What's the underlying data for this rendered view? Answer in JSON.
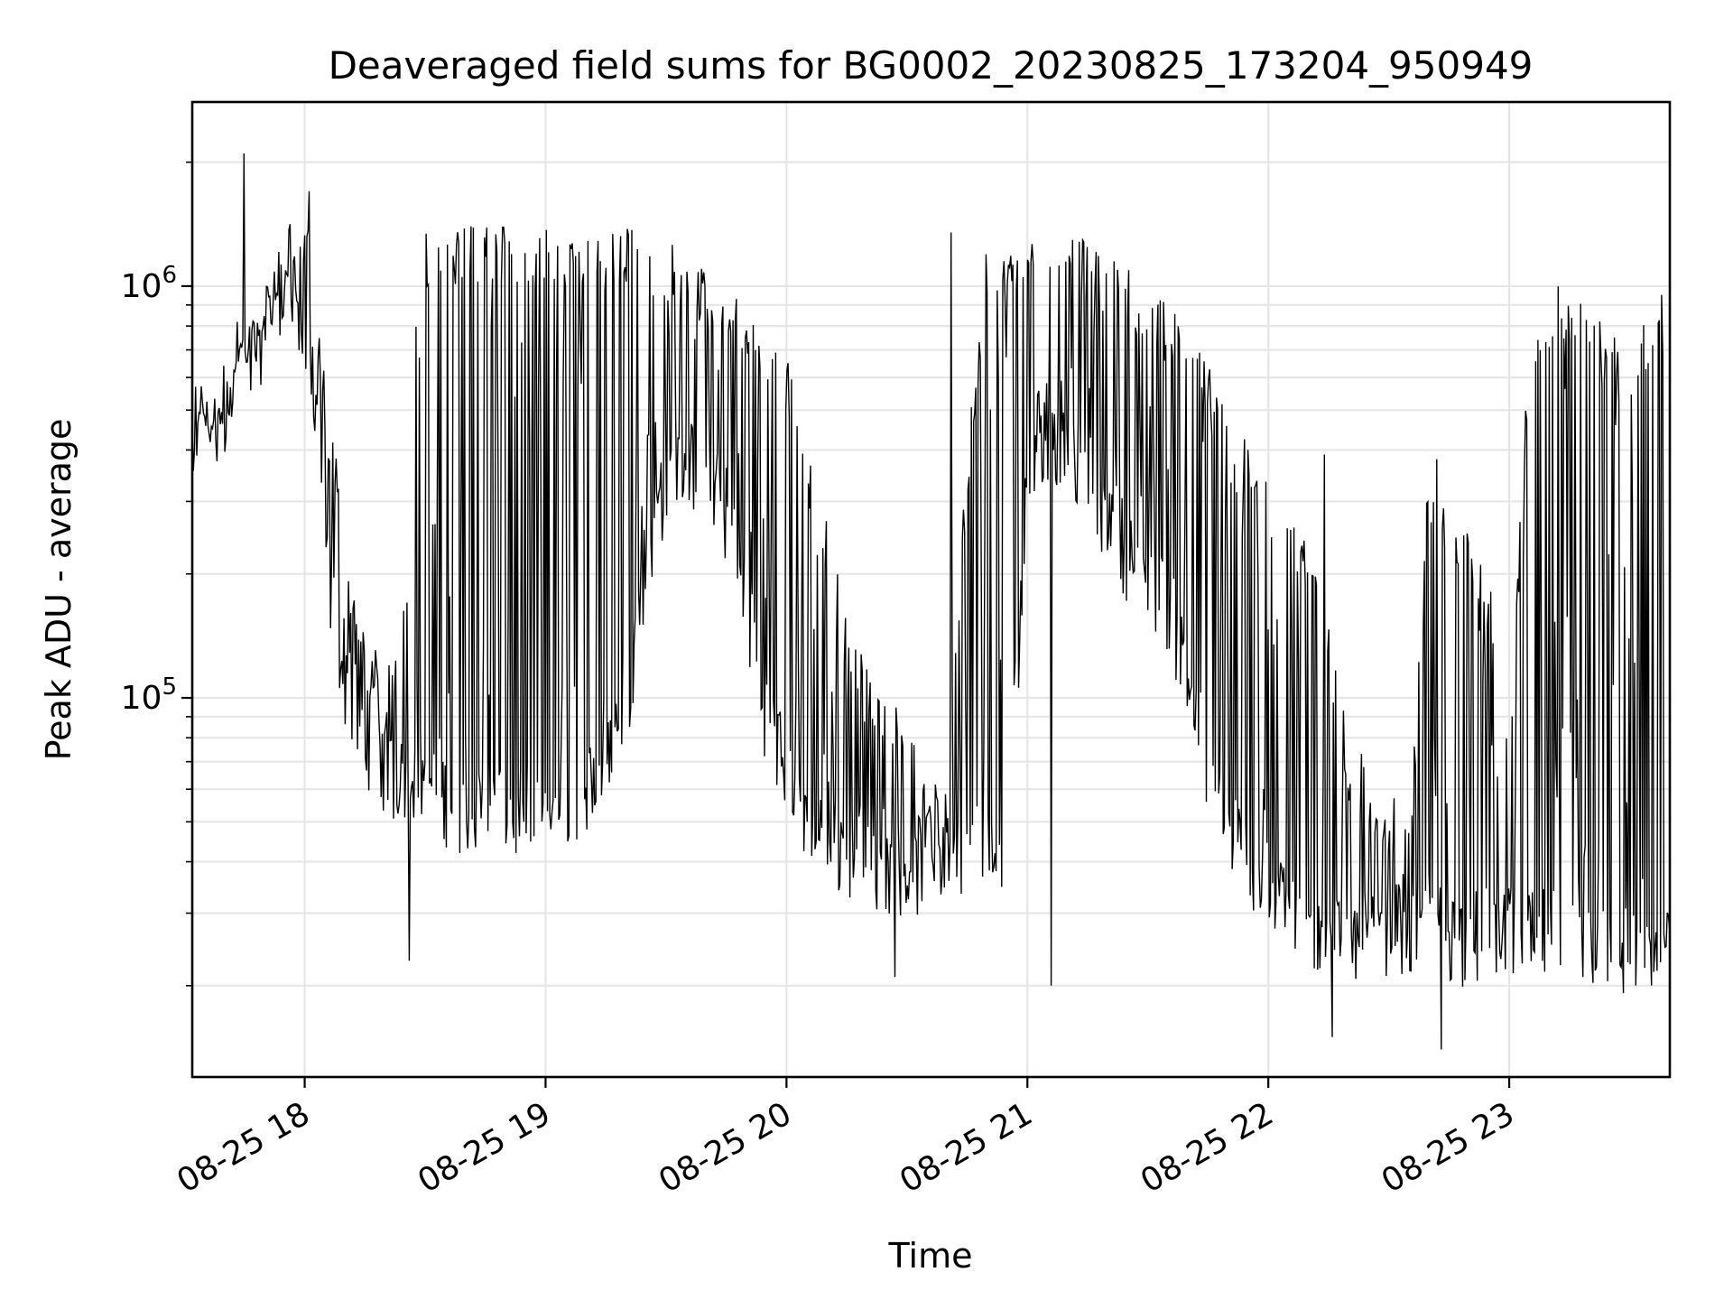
{
  "chart_data": {
    "type": "line",
    "title": "Deaveraged field sums for BG0002_20230825_173204_950949",
    "xlabel": "Time",
    "ylabel": "Peak ADU - average",
    "yscale": "log",
    "xlim": [
      "2023-08-25 17:32",
      "2023-08-25 23:40"
    ],
    "ylim": [
      12000,
      2800000
    ],
    "x_ticks": [
      {
        "time": "2023-08-25 18:00",
        "label": "08-25 18"
      },
      {
        "time": "2023-08-25 19:00",
        "label": "08-25 19"
      },
      {
        "time": "2023-08-25 20:00",
        "label": "08-25 20"
      },
      {
        "time": "2023-08-25 21:00",
        "label": "08-25 21"
      },
      {
        "time": "2023-08-25 22:00",
        "label": "08-25 22"
      },
      {
        "time": "2023-08-25 23:00",
        "label": "08-25 23"
      }
    ],
    "y_ticks": [
      {
        "value": 100000,
        "base": "10",
        "exp": "5"
      },
      {
        "value": 1000000,
        "base": "10",
        "exp": "6"
      }
    ],
    "grid": true,
    "line_color": "#000000",
    "series": [
      {
        "x": [
          "2023-08-25 17:32",
          "2023-08-25 17:35",
          "2023-08-25 17:38",
          "2023-08-25 17:41",
          "2023-08-25 17:44",
          "2023-08-25 17:46",
          "2023-08-25 17:48",
          "2023-08-25 17:50",
          "2023-08-25 17:52",
          "2023-08-25 17:54",
          "2023-08-25 17:56",
          "2023-08-25 17:58",
          "2023-08-25 18:00",
          "2023-08-25 18:02",
          "2023-08-25 18:05",
          "2023-08-25 18:08",
          "2023-08-25 18:10",
          "2023-08-25 18:13",
          "2023-08-25 18:16",
          "2023-08-25 18:20",
          "2023-08-25 18:24",
          "2023-08-25 18:28",
          "2023-08-25 18:32",
          "2023-08-25 18:36",
          "2023-08-25 18:40",
          "2023-08-25 18:45",
          "2023-08-25 18:50",
          "2023-08-25 18:55",
          "2023-08-25 19:00",
          "2023-08-25 19:05",
          "2023-08-25 19:10",
          "2023-08-25 19:15",
          "2023-08-25 19:20",
          "2023-08-25 19:25",
          "2023-08-25 19:30",
          "2023-08-25 19:35",
          "2023-08-25 19:40",
          "2023-08-25 19:45",
          "2023-08-25 19:50",
          "2023-08-25 19:55",
          "2023-08-25 20:00",
          "2023-08-25 20:05",
          "2023-08-25 20:10",
          "2023-08-25 20:15",
          "2023-08-25 20:20",
          "2023-08-25 20:25",
          "2023-08-25 20:30",
          "2023-08-25 20:35",
          "2023-08-25 20:40",
          "2023-08-25 20:45",
          "2023-08-25 20:50",
          "2023-08-25 20:55",
          "2023-08-25 21:00",
          "2023-08-25 21:05",
          "2023-08-25 21:10",
          "2023-08-25 21:15",
          "2023-08-25 21:20",
          "2023-08-25 21:25",
          "2023-08-25 21:30",
          "2023-08-25 21:35",
          "2023-08-25 21:40",
          "2023-08-25 21:45",
          "2023-08-25 21:50",
          "2023-08-25 21:55",
          "2023-08-25 22:00",
          "2023-08-25 22:05",
          "2023-08-25 22:10",
          "2023-08-25 22:15",
          "2023-08-25 22:20",
          "2023-08-25 22:25",
          "2023-08-25 22:30",
          "2023-08-25 22:35",
          "2023-08-25 22:40",
          "2023-08-25 22:45",
          "2023-08-25 22:50",
          "2023-08-25 22:55",
          "2023-08-25 23:00",
          "2023-08-25 23:05",
          "2023-08-25 23:10",
          "2023-08-25 23:15",
          "2023-08-25 23:20",
          "2023-08-25 23:25",
          "2023-08-25 23:30",
          "2023-08-25 23:35",
          "2023-08-25 23:40"
        ],
        "lo": [
          400000,
          450000,
          380000,
          500000,
          600000,
          550000,
          650000,
          700000,
          800000,
          900000,
          1000000,
          850000,
          600000,
          500000,
          200000,
          130000,
          100000,
          80000,
          70000,
          60000,
          55000,
          60000,
          55000,
          50000,
          48000,
          47000,
          48000,
          45000,
          45000,
          50000,
          55000,
          60000,
          80000,
          200000,
          300000,
          350000,
          300000,
          250000,
          150000,
          80000,
          60000,
          45000,
          40000,
          38000,
          36000,
          35000,
          34000,
          35000,
          38000,
          40000,
          38000,
          40000,
          300000,
          400000,
          350000,
          300000,
          250000,
          200000,
          180000,
          150000,
          100000,
          60000,
          45000,
          35000,
          30000,
          28000,
          25000,
          24000,
          23000,
          24000,
          25000,
          24000,
          25000,
          24000,
          23000,
          24000,
          24000,
          23000,
          24000,
          23000,
          23000,
          22000,
          21000,
          22000,
          22000
        ],
        "hi": [
          500000,
          550000,
          500000,
          600000,
          800000,
          900000,
          1100000,
          1000000,
          1200000,
          1300000,
          1200000,
          1100000,
          1500000,
          1400000,
          600000,
          400000,
          200000,
          200000,
          150000,
          120000,
          130000,
          1300000,
          1400000,
          1400000,
          1400000,
          1400000,
          1400000,
          1350000,
          1400000,
          1400000,
          1400000,
          1350000,
          1400000,
          1300000,
          1300000,
          1200000,
          1100000,
          1000000,
          900000,
          800000,
          700000,
          400000,
          300000,
          150000,
          120000,
          100000,
          90000,
          60000,
          70000,
          400000,
          1300000,
          1300000,
          1300000,
          1300000,
          1300000,
          1300000,
          1200000,
          1100000,
          1000000,
          900000,
          800000,
          700000,
          600000,
          400000,
          350000,
          300000,
          250000,
          150000,
          80000,
          70000,
          60000,
          50000,
          380000,
          300000,
          250000,
          200000,
          70000,
          900000,
          1000000,
          1000000,
          900000,
          800000,
          700000,
          900000,
          1000000
        ],
        "extremes_low": [
          {
            "x": "2023-08-25 18:26",
            "value": 23000
          },
          {
            "x": "2023-08-25 20:27",
            "value": 21000
          },
          {
            "x": "2023-08-25 21:06",
            "value": 20000
          },
          {
            "x": "2023-08-25 22:16",
            "value": 15000
          },
          {
            "x": "2023-08-25 22:43",
            "value": 14000
          }
        ],
        "extremes_high": [
          {
            "x": "2023-08-25 17:45",
            "value": 2100000
          },
          {
            "x": "2023-08-25 18:01",
            "value": 1700000
          },
          {
            "x": "2023-08-25 20:41",
            "value": 1350000
          },
          {
            "x": "2023-08-25 22:14",
            "value": 390000
          },
          {
            "x": "2023-08-25 22:42",
            "value": 380000
          }
        ]
      }
    ]
  }
}
